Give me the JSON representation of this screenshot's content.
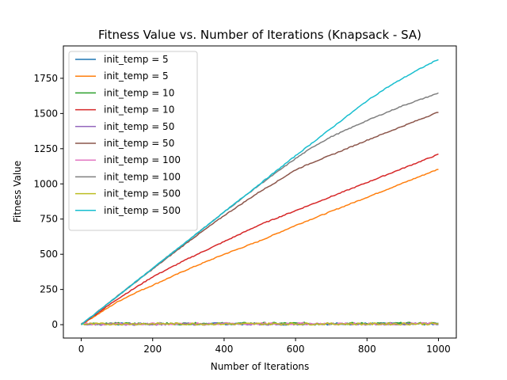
{
  "chart_data": {
    "type": "line",
    "title": "Fitness Value vs. Number of Iterations (Knapsack - SA)",
    "xlabel": "Number of Iterations",
    "ylabel": "Fitness Value",
    "xlim": [
      -50,
      1050
    ],
    "ylim": [
      -95,
      1980
    ],
    "xticks": [
      0,
      200,
      400,
      600,
      800,
      1000
    ],
    "yticks": [
      0,
      250,
      500,
      750,
      1000,
      1250,
      1500,
      1750
    ],
    "legend_position": "upper-left",
    "grid": false,
    "series": [
      {
        "name": "init_temp = 5",
        "color": "#1f77b4",
        "x": [
          0,
          200,
          400,
          600,
          800,
          1000
        ],
        "y": [
          5,
          5,
          6,
          5,
          6,
          5
        ],
        "noisy": true
      },
      {
        "name": "init_temp = 5",
        "color": "#ff7f0e",
        "x": [
          0,
          50,
          100,
          150,
          200,
          300,
          400,
          500,
          600,
          700,
          800,
          900,
          1000
        ],
        "y": [
          0,
          80,
          160,
          225,
          280,
          395,
          500,
          595,
          705,
          805,
          905,
          1005,
          1105
        ]
      },
      {
        "name": "init_temp = 10",
        "color": "#2ca02c",
        "x": [
          0,
          200,
          400,
          600,
          800,
          1000
        ],
        "y": [
          8,
          7,
          8,
          9,
          8,
          9
        ],
        "noisy": true
      },
      {
        "name": "init_temp = 10",
        "color": "#d62728",
        "x": [
          0,
          50,
          100,
          150,
          200,
          300,
          400,
          500,
          600,
          700,
          800,
          900,
          1000
        ],
        "y": [
          0,
          90,
          180,
          260,
          340,
          470,
          590,
          710,
          810,
          910,
          1010,
          1110,
          1210
        ]
      },
      {
        "name": "init_temp = 50",
        "color": "#9467bd",
        "x": [
          0,
          200,
          400,
          600,
          800,
          1000
        ],
        "y": [
          3,
          4,
          5,
          4,
          5,
          6
        ],
        "noisy": true
      },
      {
        "name": "init_temp = 50",
        "color": "#8c564b",
        "x": [
          0,
          100,
          200,
          300,
          400,
          500,
          550,
          600,
          650,
          700,
          800,
          900,
          1000
        ],
        "y": [
          0,
          200,
          395,
          590,
          775,
          945,
          1020,
          1100,
          1155,
          1205,
          1310,
          1410,
          1510
        ]
      },
      {
        "name": "init_temp = 100",
        "color": "#e377c2",
        "x": [
          0,
          200,
          400,
          600,
          800,
          1000
        ],
        "y": [
          6,
          5,
          6,
          7,
          6,
          7
        ],
        "noisy": true
      },
      {
        "name": "init_temp = 100",
        "color": "#7f7f7f",
        "x": [
          0,
          100,
          200,
          300,
          400,
          500,
          600,
          650,
          700,
          800,
          900,
          1000
        ],
        "y": [
          0,
          200,
          400,
          600,
          800,
          995,
          1180,
          1265,
          1335,
          1450,
          1555,
          1645
        ]
      },
      {
        "name": "init_temp = 500",
        "color": "#bcbd22",
        "x": [
          0,
          200,
          400,
          600,
          800,
          1000
        ],
        "y": [
          4,
          6,
          5,
          6,
          5,
          6
        ],
        "noisy": true
      },
      {
        "name": "init_temp = 500",
        "color": "#17becf",
        "x": [
          0,
          100,
          200,
          300,
          400,
          500,
          600,
          700,
          800,
          850,
          900,
          950,
          1000
        ],
        "y": [
          0,
          200,
          400,
          600,
          800,
          1000,
          1200,
          1395,
          1590,
          1675,
          1750,
          1820,
          1885
        ]
      }
    ]
  }
}
